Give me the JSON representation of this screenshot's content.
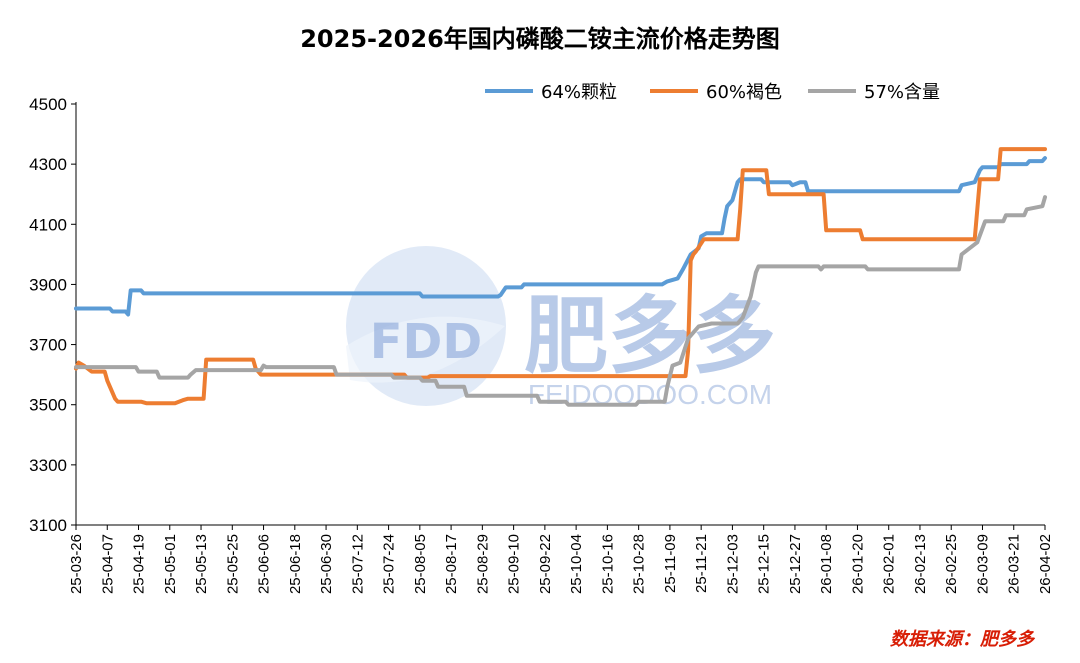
{
  "chart_data": {
    "type": "line",
    "title": "2025-2026年国内磷酸二铵主流价格走势图",
    "xlabel": "",
    "ylabel": "",
    "ylim": [
      3100,
      4500
    ],
    "yticks": [
      3100,
      3300,
      3500,
      3700,
      3900,
      4100,
      4300,
      4500
    ],
    "x_range": [
      "25-03-26",
      "26-04-02"
    ],
    "xticks": [
      "25-03-26",
      "25-04-07",
      "25-04-19",
      "25-05-01",
      "25-05-13",
      "25-05-25",
      "25-06-06",
      "25-06-18",
      "25-06-30",
      "25-07-12",
      "25-07-24",
      "25-08-05",
      "25-08-17",
      "25-08-29",
      "25-09-10",
      "25-09-22",
      "25-10-04",
      "25-10-16",
      "25-10-28",
      "25-11-09",
      "25-11-21",
      "25-12-03",
      "25-12-15",
      "25-12-27",
      "26-01-08",
      "26-01-20",
      "26-02-01",
      "26-02-13",
      "26-02-25",
      "26-03-09",
      "26-03-21",
      "26-04-02"
    ],
    "legend_position": "top-right",
    "grid": false,
    "series": [
      {
        "name": "64%颗粒",
        "color": "#5b9bd5",
        "points": [
          [
            "25-03-26",
            3820
          ],
          [
            "25-04-08",
            3820
          ],
          [
            "25-04-09",
            3810
          ],
          [
            "25-04-14",
            3810
          ],
          [
            "25-04-15",
            3800
          ],
          [
            "25-04-16",
            3880
          ],
          [
            "25-04-20",
            3880
          ],
          [
            "25-04-21",
            3870
          ],
          [
            "25-08-05",
            3870
          ],
          [
            "25-08-06",
            3860
          ],
          [
            "25-09-04",
            3860
          ],
          [
            "25-09-05",
            3865
          ],
          [
            "25-09-07",
            3890
          ],
          [
            "25-09-13",
            3890
          ],
          [
            "25-09-14",
            3900
          ],
          [
            "25-11-06",
            3900
          ],
          [
            "25-11-08",
            3910
          ],
          [
            "25-11-12",
            3920
          ],
          [
            "25-11-14",
            3950
          ],
          [
            "25-11-17",
            4000
          ],
          [
            "25-11-20",
            4020
          ],
          [
            "25-11-21",
            4060
          ],
          [
            "25-11-23",
            4070
          ],
          [
            "25-11-29",
            4070
          ],
          [
            "25-11-30",
            4120
          ],
          [
            "25-12-01",
            4160
          ],
          [
            "25-12-03",
            4180
          ],
          [
            "25-12-05",
            4240
          ],
          [
            "25-12-06",
            4250
          ],
          [
            "25-12-14",
            4250
          ],
          [
            "25-12-15",
            4240
          ],
          [
            "25-12-25",
            4240
          ],
          [
            "25-12-26",
            4230
          ],
          [
            "25-12-29",
            4240
          ],
          [
            "25-12-31",
            4240
          ],
          [
            "26-01-01",
            4210
          ],
          [
            "26-02-28",
            4210
          ],
          [
            "26-03-01",
            4230
          ],
          [
            "26-03-06",
            4240
          ],
          [
            "26-03-08",
            4280
          ],
          [
            "26-03-09",
            4290
          ],
          [
            "26-03-15",
            4290
          ],
          [
            "26-03-16",
            4300
          ],
          [
            "26-03-26",
            4300
          ],
          [
            "26-03-27",
            4310
          ],
          [
            "26-04-01",
            4310
          ],
          [
            "26-04-02",
            4320
          ]
        ]
      },
      {
        "name": "60%褐色",
        "color": "#ed7d31",
        "points": [
          [
            "25-03-26",
            3620
          ],
          [
            "25-03-27",
            3640
          ],
          [
            "25-03-29",
            3630
          ],
          [
            "25-04-01",
            3610
          ],
          [
            "25-04-06",
            3610
          ],
          [
            "25-04-07",
            3580
          ],
          [
            "25-04-08",
            3560
          ],
          [
            "25-04-10",
            3520
          ],
          [
            "25-04-11",
            3510
          ],
          [
            "25-04-20",
            3510
          ],
          [
            "25-04-22",
            3505
          ],
          [
            "25-05-03",
            3505
          ],
          [
            "25-05-06",
            3515
          ],
          [
            "25-05-08",
            3520
          ],
          [
            "25-05-14",
            3520
          ],
          [
            "25-05-15",
            3650
          ],
          [
            "25-06-02",
            3650
          ],
          [
            "25-06-03",
            3620
          ],
          [
            "25-06-05",
            3600
          ],
          [
            "25-07-30",
            3600
          ],
          [
            "25-07-31",
            3590
          ],
          [
            "25-08-08",
            3590
          ],
          [
            "25-08-09",
            3595
          ],
          [
            "25-11-15",
            3595
          ],
          [
            "25-11-16",
            3680
          ],
          [
            "25-11-17",
            3980
          ],
          [
            "25-11-18",
            4000
          ],
          [
            "25-11-19",
            4010
          ],
          [
            "25-11-22",
            4050
          ],
          [
            "25-12-05",
            4050
          ],
          [
            "25-12-06",
            4150
          ],
          [
            "25-12-07",
            4280
          ],
          [
            "25-12-16",
            4280
          ],
          [
            "25-12-17",
            4200
          ],
          [
            "26-01-07",
            4200
          ],
          [
            "26-01-08",
            4080
          ],
          [
            "26-01-21",
            4080
          ],
          [
            "26-01-22",
            4050
          ],
          [
            "26-03-06",
            4050
          ],
          [
            "26-03-07",
            4150
          ],
          [
            "26-03-08",
            4250
          ],
          [
            "26-03-15",
            4250
          ],
          [
            "26-03-16",
            4350
          ],
          [
            "26-04-02",
            4350
          ]
        ]
      },
      {
        "name": "57%含量",
        "color": "#a5a5a5",
        "points": [
          [
            "25-03-26",
            3625
          ],
          [
            "25-04-18",
            3625
          ],
          [
            "25-04-19",
            3610
          ],
          [
            "25-04-26",
            3610
          ],
          [
            "25-04-27",
            3590
          ],
          [
            "25-05-08",
            3590
          ],
          [
            "25-05-09",
            3600
          ],
          [
            "25-05-11",
            3615
          ],
          [
            "25-06-05",
            3615
          ],
          [
            "25-06-06",
            3630
          ],
          [
            "25-06-07",
            3625
          ],
          [
            "25-07-03",
            3625
          ],
          [
            "25-07-04",
            3600
          ],
          [
            "25-07-25",
            3600
          ],
          [
            "25-07-26",
            3590
          ],
          [
            "25-08-05",
            3590
          ],
          [
            "25-08-06",
            3580
          ],
          [
            "25-08-11",
            3580
          ],
          [
            "25-08-12",
            3560
          ],
          [
            "25-08-22",
            3560
          ],
          [
            "25-08-23",
            3530
          ],
          [
            "25-09-19",
            3530
          ],
          [
            "25-09-20",
            3510
          ],
          [
            "25-09-30",
            3510
          ],
          [
            "25-10-01",
            3500
          ],
          [
            "25-10-27",
            3500
          ],
          [
            "25-10-28",
            3510
          ],
          [
            "25-11-07",
            3510
          ],
          [
            "25-11-08",
            3560
          ],
          [
            "25-11-10",
            3630
          ],
          [
            "25-11-13",
            3640
          ],
          [
            "25-11-16",
            3720
          ],
          [
            "25-11-20",
            3760
          ],
          [
            "25-11-25",
            3770
          ],
          [
            "25-12-05",
            3770
          ],
          [
            "25-12-07",
            3790
          ],
          [
            "25-12-10",
            3860
          ],
          [
            "25-12-12",
            3940
          ],
          [
            "25-12-13",
            3960
          ],
          [
            "26-01-05",
            3960
          ],
          [
            "26-01-06",
            3950
          ],
          [
            "26-01-07",
            3960
          ],
          [
            "26-01-23",
            3960
          ],
          [
            "26-01-24",
            3950
          ],
          [
            "26-02-28",
            3950
          ],
          [
            "26-03-01",
            4000
          ],
          [
            "26-03-04",
            4020
          ],
          [
            "26-03-07",
            4040
          ],
          [
            "26-03-10",
            4110
          ],
          [
            "26-03-17",
            4110
          ],
          [
            "26-03-18",
            4130
          ],
          [
            "26-03-25",
            4130
          ],
          [
            "26-03-26",
            4150
          ],
          [
            "26-04-01",
            4160
          ],
          [
            "26-04-02",
            4190
          ]
        ]
      }
    ]
  },
  "watermark": {
    "logo_text": "FDD",
    "brand_text": "肥多多",
    "url_text": "FEIDOODOO.COM"
  },
  "source_note": "数据来源：肥多多"
}
